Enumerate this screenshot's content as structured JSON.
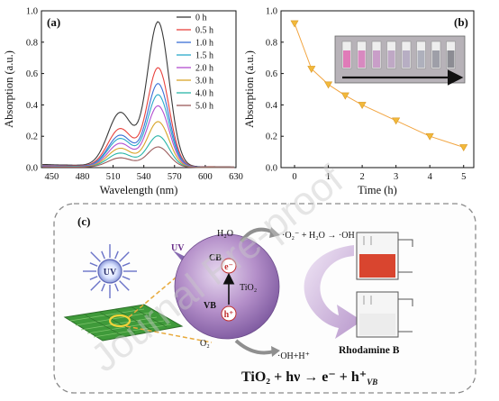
{
  "watermark": "Journal Pre-proof",
  "chart_data": [
    {
      "type": "line",
      "panel_label": "(a)",
      "xlabel": "Wavelength (nm)",
      "ylabel": "Absorption (a.u.)",
      "xlim": [
        440,
        630
      ],
      "ylim": [
        0,
        1.0
      ],
      "xticks": [
        "450",
        "480",
        "510",
        "540",
        "570",
        "600",
        "630"
      ],
      "yticks": [
        "0.0",
        "0.2",
        "0.4",
        "0.6",
        "0.8",
        "1.0"
      ],
      "legend_position": "top-right",
      "peak_wavelength": 554,
      "series": [
        {
          "name": "0 h",
          "color": "#3a3a3a",
          "peak": 0.92,
          "shoulder": 0.34,
          "baseline": 0.02
        },
        {
          "name": "0.5 h",
          "color": "#e8423d",
          "peak": 0.63,
          "shoulder": 0.24,
          "baseline": 0.015
        },
        {
          "name": "1.0 h",
          "color": "#3b6fd6",
          "peak": 0.53,
          "shoulder": 0.2,
          "baseline": 0.012
        },
        {
          "name": "1.5 h",
          "color": "#2aa9c9",
          "peak": 0.46,
          "shoulder": 0.18,
          "baseline": 0.01
        },
        {
          "name": "2.0 h",
          "color": "#b24fd0",
          "peak": 0.39,
          "shoulder": 0.15,
          "baseline": 0.008
        },
        {
          "name": "3.0 h",
          "color": "#d8a52a",
          "peak": 0.29,
          "shoulder": 0.12,
          "baseline": 0.006
        },
        {
          "name": "4.0 h",
          "color": "#2ab5a8",
          "peak": 0.2,
          "shoulder": 0.09,
          "baseline": 0.005
        },
        {
          "name": "5.0 h",
          "color": "#9a5a5a",
          "peak": 0.13,
          "shoulder": 0.06,
          "baseline": 0.004
        }
      ]
    },
    {
      "type": "line",
      "panel_label": "(b)",
      "xlabel": "Time (h)",
      "ylabel": "Absorption (a.u.)",
      "xlim": [
        -0.4,
        5.3
      ],
      "ylim": [
        0,
        1.0
      ],
      "xticks": [
        "0",
        "1",
        "2",
        "3",
        "4",
        "5"
      ],
      "yticks": [
        "0.0",
        "0.2",
        "0.4",
        "0.6",
        "0.8",
        "1.0"
      ],
      "marker_color": "#f2b93b",
      "line_color": "#f2a541",
      "series": [
        {
          "x": [
            0,
            0.5,
            1.0,
            1.5,
            2.0,
            3.0,
            4.0,
            5.0
          ],
          "y": [
            0.92,
            0.63,
            0.53,
            0.46,
            0.4,
            0.3,
            0.2,
            0.13
          ]
        }
      ],
      "inset_colors": [
        "#e07bb8",
        "#d889c0",
        "#c99ec8",
        "#bfa8c5",
        "#b7aec3",
        "#aeb0bc",
        "#9e9fa8",
        "#8c8c93"
      ]
    }
  ],
  "diagram": {
    "panel_label": "(c)",
    "uv_label": "UV",
    "uv_arrow_label": "UV",
    "cb_label": "CB",
    "vb_label": "VB",
    "electron": "e⁻",
    "hole": "h⁺",
    "tio2": "TiO₂",
    "h2o": "H₂O",
    "o2": "O₂",
    "reaction_top": "·O₂⁻ + H₂O → ·OH",
    "reaction_bottom": "·OH+H⁺",
    "product": "Rhodamine B",
    "equation": "TiO₂ + hν → e⁻ + h⁺",
    "equation_sub": "VB"
  }
}
